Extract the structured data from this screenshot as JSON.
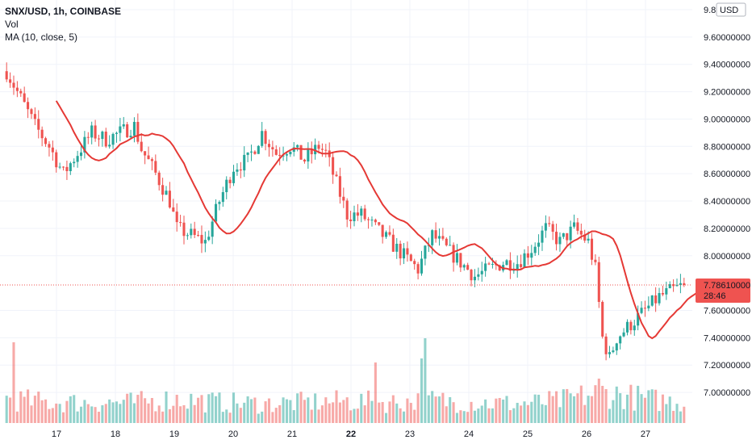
{
  "legend": {
    "symbol": "SNX/USD, 1h, COINBASE",
    "volume": "Vol",
    "ma": "MA (10, close, 5)"
  },
  "colors": {
    "up": "#26a69a",
    "down": "#ef5350",
    "ma": "#e53935",
    "price_label_bg": "#ef5350",
    "grid": "#f0f3fa",
    "axis_text": "#131722"
  },
  "chart_data": {
    "type": "candlestick",
    "currency": "USD",
    "ylim": [
      6.9,
      9.8
    ],
    "y_ticks": [
      {
        "value": 9.8,
        "label": "9.8"
      },
      {
        "value": 9.6,
        "label": "9.60000000"
      },
      {
        "value": 9.4,
        "label": "9.40000000"
      },
      {
        "value": 9.2,
        "label": "9.20000000"
      },
      {
        "value": 9.0,
        "label": "9.00000000"
      },
      {
        "value": 8.8,
        "label": "8.80000000"
      },
      {
        "value": 8.6,
        "label": "8.60000000"
      },
      {
        "value": 8.4,
        "label": "8.40000000"
      },
      {
        "value": 8.2,
        "label": "8.20000000"
      },
      {
        "value": 8.0,
        "label": "8.00000000"
      },
      {
        "value": 7.6,
        "label": "7.60000000"
      },
      {
        "value": 7.4,
        "label": "7.40000000"
      },
      {
        "value": 7.2,
        "label": "7.20000000"
      },
      {
        "value": 7.0,
        "label": "7.00000000"
      }
    ],
    "x_ticks": [
      {
        "label": "17",
        "bold": false
      },
      {
        "label": "18",
        "bold": false
      },
      {
        "label": "19",
        "bold": false
      },
      {
        "label": "20",
        "bold": false
      },
      {
        "label": "21",
        "bold": false
      },
      {
        "label": "22",
        "bold": true
      },
      {
        "label": "23",
        "bold": false
      },
      {
        "label": "24",
        "bold": false
      },
      {
        "label": "25",
        "bold": false
      },
      {
        "label": "26",
        "bold": false
      },
      {
        "label": "27",
        "bold": false
      }
    ],
    "current_price": 7.7861,
    "current_price_label": "7.78610000",
    "countdown": "28:46",
    "price_path": [
      [
        0,
        9.35
      ],
      [
        4,
        9.15
      ],
      [
        8,
        8.95
      ],
      [
        12,
        8.8
      ],
      [
        16,
        8.6
      ],
      [
        20,
        8.75
      ],
      [
        24,
        8.9
      ],
      [
        28,
        8.85
      ],
      [
        32,
        8.9
      ],
      [
        36,
        8.95
      ],
      [
        38,
        8.78
      ],
      [
        42,
        8.6
      ],
      [
        46,
        8.4
      ],
      [
        48,
        8.2
      ],
      [
        52,
        8.15
      ],
      [
        56,
        8.1
      ],
      [
        60,
        8.4
      ],
      [
        64,
        8.65
      ],
      [
        68,
        8.7
      ],
      [
        72,
        8.9
      ],
      [
        76,
        8.75
      ],
      [
        80,
        8.8
      ],
      [
        84,
        8.7
      ],
      [
        88,
        8.8
      ],
      [
        90,
        8.75
      ],
      [
        92,
        8.6
      ],
      [
        96,
        8.3
      ],
      [
        100,
        8.3
      ],
      [
        104,
        8.2
      ],
      [
        108,
        8.1
      ],
      [
        112,
        8.0
      ],
      [
        116,
        7.9
      ],
      [
        120,
        8.15
      ],
      [
        124,
        8.05
      ],
      [
        128,
        7.95
      ],
      [
        132,
        7.85
      ],
      [
        136,
        7.9
      ],
      [
        140,
        7.95
      ],
      [
        144,
        7.95
      ],
      [
        148,
        8.05
      ],
      [
        152,
        8.2
      ],
      [
        156,
        8.1
      ],
      [
        160,
        8.2
      ],
      [
        164,
        8.1
      ],
      [
        166,
        7.9
      ],
      [
        168,
        7.4
      ],
      [
        170,
        7.25
      ],
      [
        172,
        7.4
      ],
      [
        176,
        7.5
      ],
      [
        180,
        7.6
      ],
      [
        184,
        7.7
      ],
      [
        188,
        7.75
      ],
      [
        191,
        7.7861
      ]
    ],
    "volume_path": [
      [
        0,
        0.35
      ],
      [
        12,
        0.3
      ],
      [
        24,
        0.3
      ],
      [
        36,
        0.3
      ],
      [
        48,
        0.35
      ],
      [
        60,
        0.3
      ],
      [
        72,
        0.28
      ],
      [
        84,
        0.3
      ],
      [
        96,
        0.32
      ],
      [
        108,
        0.3
      ],
      [
        120,
        0.33
      ],
      [
        132,
        0.3
      ],
      [
        144,
        0.28
      ],
      [
        156,
        0.32
      ],
      [
        168,
        0.45
      ],
      [
        180,
        0.35
      ],
      [
        191,
        0.3
      ]
    ],
    "volume_spikes": [
      {
        "index": 2,
        "value": 1.0
      },
      {
        "index": 104,
        "value": 0.75
      },
      {
        "index": 117,
        "value": 0.8
      },
      {
        "index": 118,
        "value": 1.05
      },
      {
        "index": 167,
        "value": 0.55
      }
    ],
    "ma_period": 10,
    "ma_shift": 5
  }
}
